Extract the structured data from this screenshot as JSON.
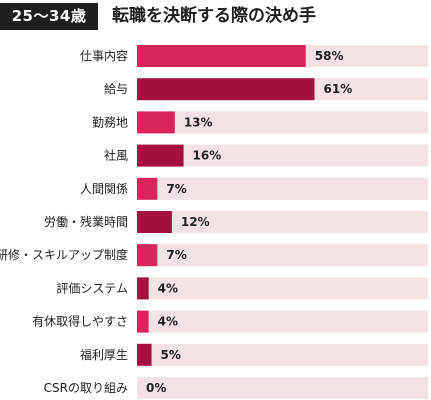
{
  "header": {
    "age_group": "25～34歳",
    "title": "転職を決断する際の決め手"
  },
  "colors": {
    "track": "#f3e2e4",
    "bar_pink": "#d9245c",
    "bar_maroon": "#a3123f"
  },
  "chart_data": {
    "type": "bar",
    "orientation": "horizontal",
    "title": "転職を決断する際の決め手",
    "categories": [
      "仕事内容",
      "給与",
      "勤務地",
      "社風",
      "人間関係",
      "労働・残業時間",
      "研修・スキルアップ制度",
      "評価システム",
      "有休取得しやすさ",
      "福利厚生",
      "CSRの取り組み"
    ],
    "values": [
      58,
      61,
      13,
      16,
      7,
      12,
      7,
      4,
      4,
      5,
      0
    ],
    "value_labels": [
      "58%",
      "61%",
      "13%",
      "16%",
      "7%",
      "12%",
      "7%",
      "4%",
      "4%",
      "5%",
      "0%"
    ],
    "unit": "%",
    "xlim": [
      0,
      100
    ],
    "grid": false,
    "legend": "none"
  }
}
